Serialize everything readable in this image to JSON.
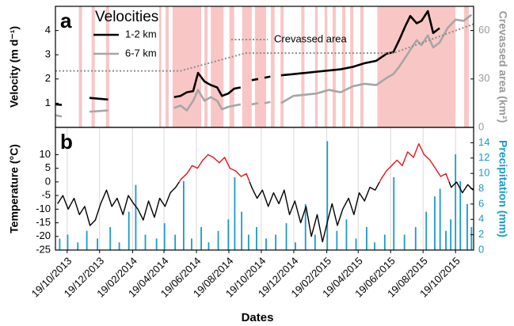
{
  "chart_data": [
    {
      "type": "line",
      "panel_label": "a",
      "legend_title": "Velocities",
      "ylabel": "Velocity (m d⁻¹)",
      "y2label": "Crevassed area (km²)",
      "y2_color": "#9a9a9a",
      "xlim": [
        "2013-09-27",
        "2015-11-22"
      ],
      "ylim": [
        0,
        5
      ],
      "yticks": [
        1,
        2,
        3,
        4
      ],
      "y2lim": [
        0,
        75
      ],
      "y2ticks": [
        0,
        30,
        60
      ],
      "shade_color": "#f9c6c6",
      "shaded_periods": [
        [
          "2013-11-10",
          "2013-11-16"
        ],
        [
          "2013-12-04",
          "2013-12-10"
        ],
        [
          "2013-12-31",
          "2014-01-06"
        ],
        [
          "2014-04-10",
          "2014-04-14"
        ],
        [
          "2014-04-22",
          "2014-04-28"
        ],
        [
          "2014-05-05",
          "2014-06-28"
        ],
        [
          "2014-07-04",
          "2014-07-10"
        ],
        [
          "2014-07-16",
          "2014-08-09"
        ],
        [
          "2014-08-20",
          "2014-08-29"
        ],
        [
          "2014-09-13",
          "2014-10-01"
        ],
        [
          "2014-10-07",
          "2014-10-28"
        ],
        [
          "2014-11-06",
          "2014-11-13"
        ],
        [
          "2014-11-24",
          "2014-11-30"
        ],
        [
          "2015-01-02",
          "2015-01-08"
        ],
        [
          "2015-01-28",
          "2015-02-02"
        ],
        [
          "2015-02-15",
          "2015-02-20"
        ],
        [
          "2015-03-02",
          "2015-03-08"
        ],
        [
          "2015-03-20",
          "2015-03-26"
        ],
        [
          "2015-04-04",
          "2015-04-10"
        ],
        [
          "2015-04-23",
          "2015-04-29"
        ],
        [
          "2015-05-25",
          "2015-10-19"
        ],
        [
          "2015-11-04",
          "2015-11-13"
        ]
      ],
      "x": [
        "2013-09-27",
        "2013-10-09",
        "2013-11-01",
        "2013-11-30",
        "2014-01-04",
        "2014-03-01",
        "2014-05-08",
        "2014-05-20",
        "2014-06-01",
        "2014-06-13",
        "2014-06-22",
        "2014-07-04",
        "2014-07-16",
        "2014-07-28",
        "2014-08-06",
        "2014-08-18",
        "2014-08-29",
        "2014-09-10",
        "2014-09-20",
        "2014-10-01",
        "2014-10-13",
        "2014-10-19",
        "2014-10-25",
        "2014-11-05",
        "2014-11-15",
        "2014-11-25",
        "2014-12-18",
        "2015-01-09",
        "2015-01-31",
        "2015-02-23",
        "2015-03-17",
        "2015-04-09",
        "2015-05-01",
        "2015-05-23",
        "2015-06-12",
        "2015-06-24",
        "2015-07-05",
        "2015-07-17",
        "2015-07-26",
        "2015-08-07",
        "2015-08-16",
        "2015-08-28",
        "2015-09-07",
        "2015-09-19",
        "2015-10-04",
        "2015-10-19",
        "2015-11-03",
        "2015-11-18"
      ],
      "series": [
        {
          "name": "1-2 km",
          "color": "#000000",
          "values": [
            0.95,
            0.93,
            null,
            1.22,
            1.15,
            null,
            1.25,
            1.3,
            1.45,
            1.5,
            2.25,
            1.9,
            1.75,
            1.65,
            1.3,
            1.4,
            1.6,
            1.65,
            null,
            1.95,
            2.0,
            null,
            2.05,
            2.1,
            null,
            2.15,
            2.2,
            2.25,
            2.3,
            2.35,
            2.4,
            2.5,
            2.65,
            2.75,
            3.05,
            3.1,
            3.6,
            4.2,
            4.6,
            4.3,
            4.4,
            4.8,
            3.9,
            4.1,
            null,
            null,
            null,
            null
          ]
        },
        {
          "name": "6-7 km",
          "color": "#a6a6a6",
          "values": [
            0.5,
            0.45,
            null,
            0.65,
            0.7,
            null,
            0.8,
            0.9,
            0.7,
            1.1,
            1.55,
            1.1,
            1.25,
            1.1,
            0.75,
            0.85,
            0.9,
            0.95,
            null,
            0.95,
            1.0,
            null,
            1.0,
            1.05,
            null,
            1.0,
            1.3,
            1.35,
            1.4,
            1.55,
            1.45,
            1.7,
            1.8,
            1.75,
            2.05,
            2.2,
            2.5,
            2.9,
            3.2,
            3.6,
            3.4,
            3.8,
            3.3,
            3.5,
            4.1,
            4.45,
            4.4,
            4.65
          ]
        },
        {
          "name": "Crevassed area",
          "color": "#8c8c8c",
          "line_style": "dotted",
          "axis": "y2",
          "x": [
            "2013-09-27",
            "2014-05-20",
            "2014-09-19",
            "2015-06-24",
            "2015-11-22"
          ],
          "values": [
            35,
            35,
            46,
            46,
            64
          ]
        }
      ]
    },
    {
      "type": "line",
      "panel_label": "b",
      "xlabel": "Dates",
      "ylabel": "Temperature (°C)",
      "y2label": "Precipitation (mm)",
      "y2_color": "#1a9bc9",
      "xlim": [
        "2013-09-27",
        "2015-11-22"
      ],
      "ylim": [
        -25,
        20
      ],
      "yticks": [
        -25,
        -20,
        -15,
        -10,
        -5,
        0,
        5,
        10
      ],
      "y2lim": [
        0,
        16
      ],
      "y2ticks": [
        0,
        2,
        4,
        6,
        8,
        10,
        12,
        14
      ],
      "grid": true,
      "xticks": [
        {
          "value": "2013-10-19",
          "label": "19/10/2013"
        },
        {
          "value": "2013-12-19",
          "label": "19/12/2013"
        },
        {
          "value": "2014-02-19",
          "label": "19/02/2014"
        },
        {
          "value": "2014-04-19",
          "label": "19/04/2014"
        },
        {
          "value": "2014-06-19",
          "label": "19/06/2014"
        },
        {
          "value": "2014-08-19",
          "label": "19/08/2014"
        },
        {
          "value": "2014-10-19",
          "label": "19/10/2014"
        },
        {
          "value": "2014-12-19",
          "label": "19/12/2014"
        },
        {
          "value": "2015-02-19",
          "label": "19/02/2015"
        },
        {
          "value": "2015-04-19",
          "label": "19/04/2015"
        },
        {
          "value": "2015-06-19",
          "label": "19/06/2015"
        },
        {
          "value": "2015-08-19",
          "label": "19/08/2015"
        },
        {
          "value": "2015-10-19",
          "label": "19/10/2015"
        }
      ],
      "series": [
        {
          "type": "bar",
          "axis": "y2",
          "color": "#1a9bc9",
          "x": [
            "2013-10-05",
            "2013-10-20",
            "2013-11-08",
            "2013-11-25",
            "2013-12-15",
            "2014-01-08",
            "2014-01-25",
            "2014-02-12",
            "2014-02-25",
            "2014-03-15",
            "2014-04-05",
            "2014-04-20",
            "2014-05-10",
            "2014-05-26",
            "2014-06-10",
            "2014-06-28",
            "2014-07-12",
            "2014-07-30",
            "2014-08-18",
            "2014-08-30",
            "2014-09-12",
            "2014-09-25",
            "2014-10-10",
            "2014-10-28",
            "2014-11-15",
            "2014-12-05",
            "2014-12-22",
            "2015-01-10",
            "2015-01-28",
            "2015-02-20",
            "2015-03-10",
            "2015-03-28",
            "2015-04-15",
            "2015-05-05",
            "2015-05-20",
            "2015-06-08",
            "2015-06-25",
            "2015-07-15",
            "2015-08-05",
            "2015-08-25",
            "2015-09-10",
            "2015-09-20",
            "2015-10-01",
            "2015-10-10",
            "2015-10-19",
            "2015-10-28",
            "2015-11-10",
            "2015-11-18"
          ],
          "values": [
            1.5,
            2,
            1,
            2.5,
            1.5,
            3,
            1,
            5,
            8.5,
            2,
            1.5,
            3.5,
            2,
            9,
            1.5,
            3,
            1,
            2.5,
            4,
            9.5,
            5,
            2,
            3,
            1.5,
            2,
            3.5,
            1,
            6,
            2,
            14.2,
            2.5,
            4,
            1.5,
            3,
            1,
            2,
            9.5,
            2,
            3,
            5,
            7,
            8,
            2.5,
            4,
            12.5,
            9,
            6,
            3
          ]
        },
        {
          "type": "line",
          "color": "#000000",
          "above_zero_color": "#e8141b",
          "x": [
            "2013-10-01",
            "2013-10-11",
            "2013-10-21",
            "2013-11-01",
            "2013-11-11",
            "2013-11-21",
            "2013-12-01",
            "2013-12-11",
            "2013-12-21",
            "2014-01-01",
            "2014-01-11",
            "2014-01-21",
            "2014-02-01",
            "2014-02-11",
            "2014-02-21",
            "2014-03-01",
            "2014-03-11",
            "2014-03-21",
            "2014-04-01",
            "2014-04-11",
            "2014-04-21",
            "2014-05-01",
            "2014-05-11",
            "2014-05-21",
            "2014-06-01",
            "2014-06-11",
            "2014-06-21",
            "2014-07-01",
            "2014-07-11",
            "2014-07-21",
            "2014-08-01",
            "2014-08-11",
            "2014-08-21",
            "2014-09-01",
            "2014-09-11",
            "2014-09-21",
            "2014-10-01",
            "2014-10-11",
            "2014-10-21",
            "2014-11-01",
            "2014-11-11",
            "2014-11-21",
            "2014-12-01",
            "2014-12-11",
            "2014-12-21",
            "2015-01-01",
            "2015-01-11",
            "2015-01-21",
            "2015-02-01",
            "2015-02-11",
            "2015-02-21",
            "2015-03-01",
            "2015-03-11",
            "2015-03-21",
            "2015-04-01",
            "2015-04-11",
            "2015-04-21",
            "2015-05-01",
            "2015-05-11",
            "2015-05-21",
            "2015-06-01",
            "2015-06-11",
            "2015-06-21",
            "2015-07-01",
            "2015-07-11",
            "2015-07-21",
            "2015-08-01",
            "2015-08-11",
            "2015-08-21",
            "2015-09-01",
            "2015-09-11",
            "2015-09-21",
            "2015-10-01",
            "2015-10-11",
            "2015-10-21",
            "2015-11-01",
            "2015-11-11",
            "2015-11-21"
          ],
          "values": [
            -8,
            -5,
            -10,
            -6,
            -12,
            -9,
            -16,
            -14,
            -8,
            -3,
            -9,
            -6,
            -12,
            -5,
            -8,
            -10,
            -14,
            -7,
            -13,
            -6,
            -9,
            -4,
            -2,
            1,
            3,
            6,
            5,
            8,
            10,
            9,
            7,
            9,
            5,
            4,
            2,
            3,
            -2,
            -6,
            -3,
            -9,
            -4,
            -8,
            -3,
            -12,
            -7,
            -15,
            -9,
            -20,
            -12,
            -22,
            -14,
            -8,
            -16,
            -10,
            -6,
            -12,
            -4,
            -7,
            -2,
            -3,
            1,
            4,
            6,
            8,
            6,
            11,
            9,
            14,
            10,
            8,
            5,
            2,
            3,
            -2,
            0,
            -4,
            -1,
            -3
          ]
        }
      ]
    }
  ]
}
